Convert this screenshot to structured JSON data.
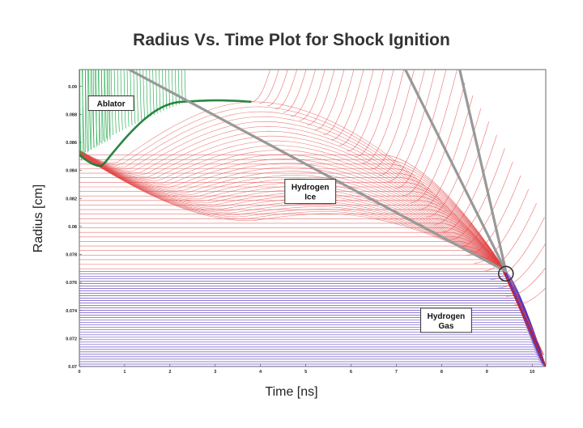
{
  "chart_data": {
    "type": "line",
    "title": "Radius Vs. Time Plot for Shock Ignition",
    "xlabel": "Time [ns]",
    "ylabel": "Radius [cm]",
    "xlim": [
      0,
      10.3
    ],
    "ylim": [
      0.07,
      0.0912
    ],
    "x_ticks": [
      "0",
      "1",
      "2",
      "3",
      "4",
      "5",
      "6",
      "7",
      "8",
      "9",
      "10"
    ],
    "y_ticks": [
      "0.07",
      "0.072",
      "0.074",
      "0.076",
      "0.078",
      "0.08",
      "0.082",
      "0.084",
      "0.086",
      "0.088",
      "0.09"
    ],
    "regions": [
      {
        "name": "Ablator",
        "lines": [
          "Ablator"
        ],
        "color": "#1faa4a",
        "x": 0.7,
        "y": 0.0888
      },
      {
        "name": "Hydrogen Ice",
        "lines": [
          "Hydrogen",
          "Ice"
        ],
        "color": "#e04040",
        "x": 5.1,
        "y": 0.0825
      },
      {
        "name": "Hydrogen Gas",
        "lines": [
          "Hydrogen",
          "Gas"
        ],
        "color": "#5533bb",
        "x": 8.1,
        "y": 0.0733
      }
    ],
    "shock_lines": [
      {
        "from": [
          1.1,
          0.0912
        ],
        "to": [
          9.42,
          0.0768
        ]
      },
      {
        "from": [
          7.2,
          0.0912
        ],
        "to": [
          9.42,
          0.0768
        ]
      },
      {
        "from": [
          8.4,
          0.0912
        ],
        "to": [
          9.42,
          0.0768
        ]
      }
    ],
    "convergence_point": {
      "x": 9.42,
      "y": 0.0768
    },
    "colors": {
      "ablator": "#1faa4a",
      "ice": "#e04040",
      "gas": "#5533bb",
      "shock": "#999999"
    }
  }
}
